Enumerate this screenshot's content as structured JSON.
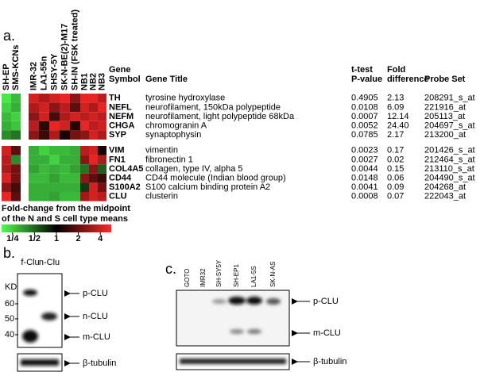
{
  "panel_a": {
    "label": "a.",
    "cell_line_groups": [
      [
        "SH-EP",
        "SMS-KCNs"
      ],
      [
        "IMR-32",
        "LA1-55n",
        "SHSY-5Y",
        "SK-N-BE(2)-M17",
        "SH-IN (FSK treated)"
      ],
      [
        "NB1",
        "NB2",
        "NB3"
      ]
    ],
    "header": {
      "gene": "Gene",
      "symbol": "Symbol",
      "gene_title": "Gene Title",
      "ttest": "t-test",
      "p_value": "P-value",
      "fold": "Fold",
      "difference": "difference",
      "probe_set": "Probe Set"
    },
    "gene_blocks": [
      [
        {
          "symbol": "TH",
          "title": "tyrosine hydroxylase",
          "p_value": "0.4905",
          "fold": "2.13",
          "probe_set": "208291_s_at",
          "values": [
            -2,
            -1.6,
            1.8,
            1.5,
            1.8,
            2,
            1.2,
            2,
            2,
            1.6
          ]
        },
        {
          "symbol": "NEFL",
          "title": "neurofilament, 150kDa polypeptide",
          "p_value": "0.0108",
          "fold": "6.09",
          "probe_set": "221916_at",
          "values": [
            -1.8,
            -1.5,
            1.5,
            1.8,
            1.2,
            1.6,
            0.8,
            1.8,
            1.5,
            2
          ]
        },
        {
          "symbol": "NEFM",
          "title": "neurofilament, light polypeptide 68kDa",
          "p_value": "0.0007",
          "fold": "12.14",
          "probe_set": "205113_at",
          "values": [
            -1.6,
            -1.8,
            1.2,
            1.8,
            0.6,
            1.5,
            1.8,
            1.6,
            1.8,
            1.6
          ]
        },
        {
          "symbol": "CHGA",
          "title": "chromogranin A",
          "p_value": "0.0052",
          "fold": "24.40",
          "probe_set": "204697_s_at",
          "values": [
            -1.5,
            -1.7,
            1.6,
            0.4,
            2,
            1.8,
            0.3,
            2,
            1.6,
            1.8
          ]
        },
        {
          "symbol": "SYP",
          "title": "synaptophysin",
          "p_value": "0.0785",
          "fold": "2.17",
          "probe_set": "213200_at",
          "values": [
            -1.2,
            -1,
            1.2,
            0.5,
            1.5,
            0.2,
            1,
            1.2,
            1.8,
            1.5
          ]
        }
      ],
      [
        {
          "symbol": "VIM",
          "title": "vimentin",
          "p_value": "0.0023",
          "fold": "0.17",
          "probe_set": "201426_s_at",
          "values": [
            1.8,
            0.8,
            -1.5,
            -1.8,
            -1.6,
            -1.6,
            -1.5,
            1.6,
            1.8,
            0.2
          ]
        },
        {
          "symbol": "FN1",
          "title": "fibronectin 1",
          "p_value": "0.0027",
          "fold": "0.02",
          "probe_set": "212464_s_at",
          "values": [
            1.6,
            -1.2,
            -1.5,
            -1.5,
            -1.8,
            -1.5,
            -1.5,
            1.2,
            2,
            1.5
          ]
        },
        {
          "symbol": "COL4A5",
          "title": "collagen, type IV, alpha 5",
          "p_value": "0.0044",
          "fold": "0.15",
          "probe_set": "213110_s_at",
          "values": [
            1.5,
            1,
            -1.4,
            -1.6,
            -1.5,
            -1.6,
            -1.4,
            -1,
            1.2,
            -0.8
          ]
        },
        {
          "symbol": "CD44",
          "title": "CD44 molecule (Indian blood group)",
          "p_value": "0.0148",
          "fold": "0.06",
          "probe_set": "204490_s_at",
          "values": [
            1.9,
            1,
            -1.6,
            -1.6,
            -1.4,
            -1.6,
            -1.6,
            1.2,
            0.8,
            0.5
          ]
        },
        {
          "symbol": "S100A2",
          "title": "S100 calcium binding protein A2",
          "p_value": "0.0041",
          "fold": "0.09",
          "probe_set": "204268_at",
          "values": [
            1.2,
            0.6,
            -1.5,
            -1.5,
            -1.5,
            -1.5,
            -1.5,
            -0.5,
            1.8,
            1
          ]
        },
        {
          "symbol": "CLU",
          "title": "clusterin",
          "p_value": "0.0008",
          "fold": "0.07",
          "probe_set": "222043_at",
          "values": [
            2,
            0.8,
            -1.5,
            -1.5,
            -1.4,
            -1.6,
            -1.6,
            1.4,
            1.8,
            1.6
          ]
        }
      ]
    ],
    "legend": {
      "caption": [
        "Fold-change from the midpoint",
        "of the N and S cell type means"
      ],
      "lim": [
        -2.5,
        2.5
      ],
      "ticks": [
        {
          "value": -2,
          "label": "1/4"
        },
        {
          "value": -1,
          "label": "1/2"
        },
        {
          "value": 0,
          "label": "1"
        },
        {
          "value": 1,
          "label": "2"
        },
        {
          "value": 2,
          "label": "4"
        }
      ]
    }
  },
  "panel_b": {
    "label": "b.",
    "lanes": [
      "f-Clu",
      "n-Clu"
    ],
    "kd_label": "KD",
    "markers": [
      60,
      50,
      40
    ],
    "bands": [
      "p-CLU",
      "n-CLU",
      "m-CLU"
    ],
    "loading": "β-tubulin"
  },
  "panel_c": {
    "label": "c.",
    "lanes": [
      "GOTO",
      "IMR32",
      "SH-SY5Y",
      "SH-EP1",
      "LA1-5S",
      "SK-N-AS"
    ],
    "bands": [
      "p-CLU",
      "m-CLU"
    ],
    "loading": "β-tubulin"
  }
}
